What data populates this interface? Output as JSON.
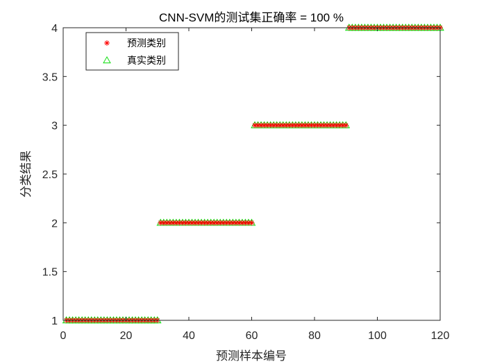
{
  "chart_data": {
    "type": "scatter",
    "title": "CNN-SVM的测试集正确率 = 100 %",
    "xlabel": "预测样本编号",
    "ylabel": "分类结果",
    "xlim": [
      0,
      120
    ],
    "ylim": [
      1,
      4
    ],
    "xticks": [
      "0",
      "20",
      "40",
      "60",
      "80",
      "100",
      "120"
    ],
    "yticks": [
      "1",
      "1.5",
      "2",
      "2.5",
      "3",
      "3.5",
      "4"
    ],
    "grid": false,
    "legend_position": "top-left",
    "series": [
      {
        "name": "预测类别",
        "marker": "asterisk",
        "color": "#ff0000",
        "groups": [
          {
            "x_start": 1,
            "x_end": 30,
            "y": 1
          },
          {
            "x_start": 31,
            "x_end": 60,
            "y": 2
          },
          {
            "x_start": 61,
            "x_end": 90,
            "y": 3
          },
          {
            "x_start": 91,
            "x_end": 120,
            "y": 4
          }
        ]
      },
      {
        "name": "真实类别",
        "marker": "triangle",
        "color": "#00dd00",
        "groups": [
          {
            "x_start": 1,
            "x_end": 30,
            "y": 1
          },
          {
            "x_start": 31,
            "x_end": 60,
            "y": 2
          },
          {
            "x_start": 61,
            "x_end": 90,
            "y": 3
          },
          {
            "x_start": 91,
            "x_end": 120,
            "y": 4
          }
        ]
      }
    ]
  }
}
